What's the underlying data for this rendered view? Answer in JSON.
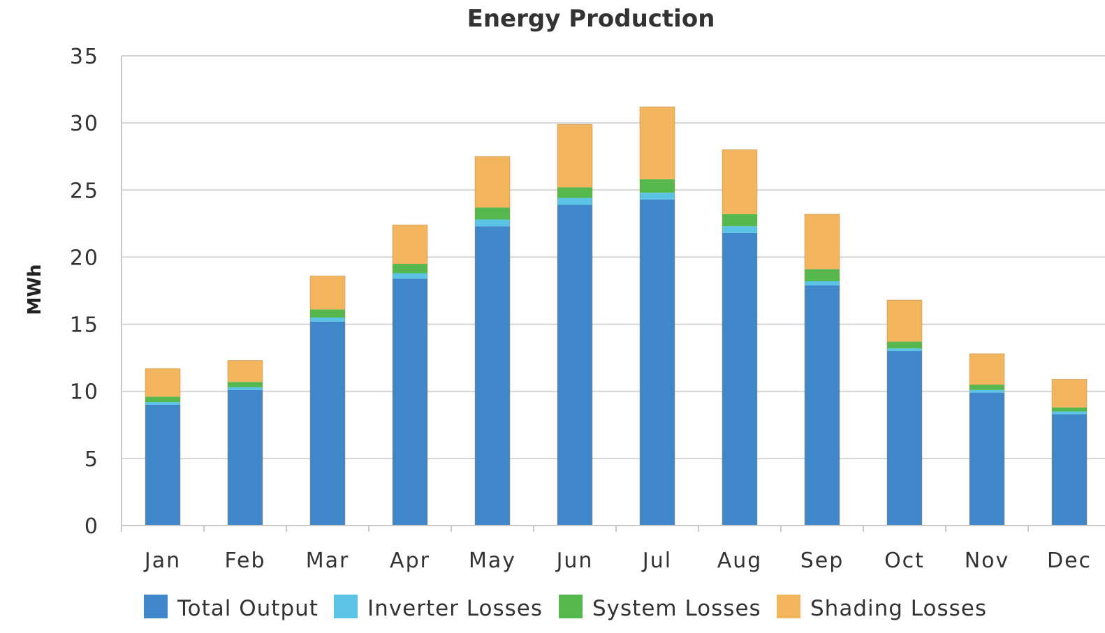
{
  "chart_data": {
    "type": "bar",
    "stacked": true,
    "title": "Energy Production",
    "xlabel": "",
    "ylabel": "MWh",
    "ylim": [
      0,
      35
    ],
    "yticks": [
      0,
      5,
      10,
      15,
      20,
      25,
      30,
      35
    ],
    "grid": true,
    "legend_position": "bottom",
    "categories": [
      "Jan",
      "Feb",
      "Mar",
      "Apr",
      "May",
      "Jun",
      "Jul",
      "Aug",
      "Sep",
      "Oct",
      "Nov",
      "Dec"
    ],
    "series": [
      {
        "name": "Total Output",
        "color": "#3f87c9",
        "values": [
          9.0,
          10.1,
          15.2,
          18.4,
          22.3,
          23.9,
          24.3,
          21.8,
          17.9,
          13.0,
          9.9,
          8.3
        ]
      },
      {
        "name": "Inverter Losses",
        "color": "#5bc3e6",
        "values": [
          0.2,
          0.2,
          0.3,
          0.4,
          0.5,
          0.5,
          0.5,
          0.5,
          0.3,
          0.2,
          0.2,
          0.2
        ]
      },
      {
        "name": "System Losses",
        "color": "#55b84e",
        "values": [
          0.4,
          0.4,
          0.6,
          0.7,
          0.9,
          0.8,
          1.0,
          0.9,
          0.9,
          0.5,
          0.4,
          0.3
        ]
      },
      {
        "name": "Shading Losses",
        "color": "#f2b55e",
        "values": [
          2.1,
          1.6,
          2.5,
          2.9,
          3.8,
          4.7,
          5.4,
          4.8,
          4.1,
          3.1,
          2.3,
          2.1
        ]
      }
    ]
  }
}
